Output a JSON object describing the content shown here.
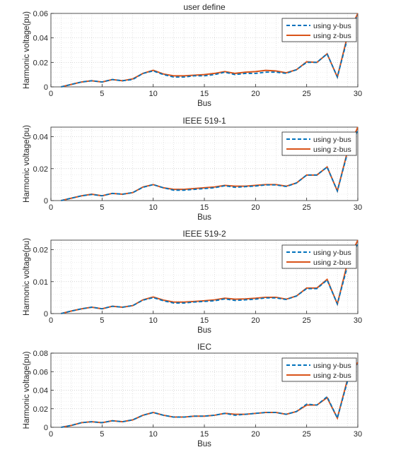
{
  "figure": {
    "xlabel": "Bus",
    "ylabel": "Harmonic voltage(pu)"
  },
  "legend": {
    "entries": [
      {
        "name": "using y-bus",
        "color": "#0072BD",
        "style": "dashed"
      },
      {
        "name": "using z-bus",
        "color": "#D95319",
        "style": "solid"
      }
    ]
  },
  "chart_data": [
    {
      "type": "line",
      "title": "user define",
      "xlabel": "Bus",
      "ylabel": "Harmonic voltage(pu)",
      "xlim": [
        0,
        30
      ],
      "ylim": [
        0,
        0.06
      ],
      "xticks": [
        0,
        5,
        10,
        15,
        20,
        25,
        30
      ],
      "yticks": [
        0,
        0.02,
        0.04,
        0.06
      ],
      "ytick_labels": [
        "0",
        "0.02",
        "0.04",
        "0.06"
      ],
      "grid": true,
      "legend_position": "top-right",
      "x": [
        1,
        2,
        3,
        4,
        5,
        6,
        7,
        8,
        9,
        10,
        11,
        12,
        13,
        14,
        15,
        16,
        17,
        18,
        19,
        20,
        21,
        22,
        23,
        24,
        25,
        26,
        27,
        28,
        29,
        30
      ],
      "series": [
        {
          "name": "using y-bus",
          "values": [
            0,
            0.002,
            0.004,
            0.005,
            0.004,
            0.006,
            0.005,
            0.006,
            0.011,
            0.013,
            0.01,
            0.008,
            0.008,
            0.009,
            0.009,
            0.01,
            0.012,
            0.01,
            0.011,
            0.011,
            0.012,
            0.012,
            0.011,
            0.014,
            0.02,
            0.02,
            0.027,
            0.008,
            0.04,
            0.059
          ]
        },
        {
          "name": "using z-bus",
          "values": [
            0,
            0.002,
            0.004,
            0.005,
            0.004,
            0.006,
            0.005,
            0.0065,
            0.011,
            0.0135,
            0.0105,
            0.009,
            0.009,
            0.0095,
            0.01,
            0.011,
            0.0125,
            0.011,
            0.012,
            0.0125,
            0.0135,
            0.013,
            0.0115,
            0.014,
            0.0205,
            0.02,
            0.027,
            0.008,
            0.042,
            0.06
          ]
        }
      ]
    },
    {
      "type": "line",
      "title": "IEEE 519-1",
      "xlabel": "Bus",
      "ylabel": "Harmonic voltage(pu)",
      "xlim": [
        0,
        30
      ],
      "ylim": [
        0,
        0.046
      ],
      "xticks": [
        0,
        5,
        10,
        15,
        20,
        25,
        30
      ],
      "yticks": [
        0,
        0.02,
        0.04
      ],
      "ytick_labels": [
        "0",
        "0.02",
        "0.04"
      ],
      "grid": true,
      "legend_position": "top-right",
      "x": [
        1,
        2,
        3,
        4,
        5,
        6,
        7,
        8,
        9,
        10,
        11,
        12,
        13,
        14,
        15,
        16,
        17,
        18,
        19,
        20,
        21,
        22,
        23,
        24,
        25,
        26,
        27,
        28,
        29,
        30
      ],
      "series": [
        {
          "name": "using y-bus",
          "values": [
            0,
            0.0015,
            0.003,
            0.0038,
            0.003,
            0.0045,
            0.004,
            0.005,
            0.0083,
            0.01,
            0.008,
            0.0065,
            0.0065,
            0.007,
            0.0075,
            0.008,
            0.0093,
            0.0083,
            0.0087,
            0.0091,
            0.0098,
            0.0098,
            0.0088,
            0.011,
            0.016,
            0.016,
            0.021,
            0.006,
            0.03,
            0.044
          ]
        },
        {
          "name": "using z-bus",
          "values": [
            0,
            0.0015,
            0.003,
            0.004,
            0.003,
            0.0045,
            0.004,
            0.005,
            0.0085,
            0.01,
            0.008,
            0.007,
            0.007,
            0.0075,
            0.008,
            0.0085,
            0.0095,
            0.009,
            0.009,
            0.0095,
            0.01,
            0.01,
            0.009,
            0.011,
            0.016,
            0.016,
            0.021,
            0.006,
            0.031,
            0.046
          ]
        }
      ]
    },
    {
      "type": "line",
      "title": "IEEE 519-2",
      "xlabel": "Bus",
      "ylabel": "Harmonic voltage(pu)",
      "xlim": [
        0,
        30
      ],
      "ylim": [
        0,
        0.023
      ],
      "xticks": [
        0,
        5,
        10,
        15,
        20,
        25,
        30
      ],
      "yticks": [
        0,
        0.01,
        0.02
      ],
      "ytick_labels": [
        "0",
        "0.01",
        "0.02"
      ],
      "grid": true,
      "legend_position": "top-right",
      "x": [
        1,
        2,
        3,
        4,
        5,
        6,
        7,
        8,
        9,
        10,
        11,
        12,
        13,
        14,
        15,
        16,
        17,
        18,
        19,
        20,
        21,
        22,
        23,
        24,
        25,
        26,
        27,
        28,
        29,
        30
      ],
      "series": [
        {
          "name": "using y-bus",
          "values": [
            0,
            0.0008,
            0.0015,
            0.002,
            0.0015,
            0.0023,
            0.002,
            0.0025,
            0.0042,
            0.005,
            0.004,
            0.0033,
            0.0033,
            0.0036,
            0.0038,
            0.004,
            0.0046,
            0.0041,
            0.0043,
            0.0045,
            0.0049,
            0.0049,
            0.0044,
            0.0055,
            0.0078,
            0.0078,
            0.0105,
            0.003,
            0.015,
            0.022
          ]
        },
        {
          "name": "using z-bus",
          "values": [
            0,
            0.0008,
            0.0015,
            0.002,
            0.0015,
            0.0023,
            0.002,
            0.0025,
            0.0043,
            0.0052,
            0.0042,
            0.0036,
            0.0036,
            0.0038,
            0.004,
            0.0043,
            0.0048,
            0.0045,
            0.0046,
            0.0048,
            0.0051,
            0.0051,
            0.0045,
            0.0055,
            0.008,
            0.008,
            0.0107,
            0.003,
            0.016,
            0.023
          ]
        }
      ]
    },
    {
      "type": "line",
      "title": "IEC",
      "xlabel": "Bus",
      "ylabel": "Harmonic voltage(pu)",
      "xlim": [
        0,
        30
      ],
      "ylim": [
        0,
        0.08
      ],
      "xticks": [
        0,
        5,
        10,
        15,
        20,
        25,
        30
      ],
      "yticks": [
        0,
        0.02,
        0.04,
        0.06,
        0.08
      ],
      "ytick_labels": [
        "0",
        "0.02",
        "0.04",
        "0.06",
        "0.08"
      ],
      "grid": true,
      "legend_position": "top-right",
      "x": [
        1,
        2,
        3,
        4,
        5,
        6,
        7,
        8,
        9,
        10,
        11,
        12,
        13,
        14,
        15,
        16,
        17,
        18,
        19,
        20,
        21,
        22,
        23,
        24,
        25,
        26,
        27,
        28,
        29,
        30
      ],
      "series": [
        {
          "name": "using y-bus",
          "values": [
            0,
            0.002,
            0.005,
            0.006,
            0.005,
            0.007,
            0.006,
            0.008,
            0.013,
            0.016,
            0.013,
            0.011,
            0.011,
            0.012,
            0.012,
            0.013,
            0.015,
            0.013,
            0.014,
            0.015,
            0.016,
            0.016,
            0.014,
            0.017,
            0.025,
            0.024,
            0.033,
            0.01,
            0.05,
            0.068
          ]
        },
        {
          "name": "using z-bus",
          "values": [
            0,
            0.002,
            0.005,
            0.006,
            0.005,
            0.007,
            0.006,
            0.008,
            0.013,
            0.016,
            0.013,
            0.011,
            0.011,
            0.012,
            0.012,
            0.013,
            0.015,
            0.014,
            0.014,
            0.015,
            0.016,
            0.016,
            0.014,
            0.017,
            0.024,
            0.024,
            0.032,
            0.01,
            0.052,
            0.07
          ]
        }
      ]
    }
  ]
}
